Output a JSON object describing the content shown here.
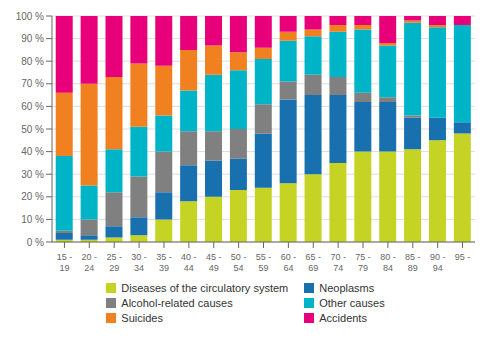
{
  "chart_data": {
    "type": "bar",
    "stacked": true,
    "grid": true,
    "legend": "bottom",
    "categories": [
      "15 -\n19",
      "20 -\n24",
      "25 -\n29",
      "30 -\n34",
      "35 -\n39",
      "40 -\n44",
      "45 -\n49",
      "50 -\n54",
      "55 -\n59",
      "60 -\n64",
      "65 -\n69",
      "70 -\n74",
      "75 -\n79",
      "80 -\n84",
      "85 -\n89",
      "90 -\n94",
      "95 -"
    ],
    "series": [
      {
        "name": "Diseases of the circulatory system",
        "color": "#c5d424",
        "values": [
          1,
          1,
          2,
          3,
          10,
          18,
          20,
          23,
          24,
          26,
          30,
          35,
          40,
          40,
          41,
          45,
          48
        ]
      },
      {
        "name": "Neoplasms",
        "color": "#1870af",
        "values": [
          3,
          2,
          5,
          8,
          12,
          16,
          16,
          14,
          24,
          37,
          35,
          30,
          22,
          22,
          14,
          10,
          5
        ]
      },
      {
        "name": "Alcohol-related causes",
        "color": "#808080",
        "values": [
          1,
          7,
          15,
          18,
          18,
          15,
          13,
          13,
          13,
          8,
          9,
          8,
          4,
          2,
          1,
          0,
          0
        ]
      },
      {
        "name": "Other causes",
        "color": "#00b4c8",
        "values": [
          33,
          15,
          19,
          22,
          16,
          18,
          25,
          26,
          20,
          18,
          17,
          20,
          28,
          23,
          41,
          40,
          43
        ]
      },
      {
        "name": "Suicides",
        "color": "#f08020",
        "values": [
          28,
          45,
          32,
          28,
          22,
          18,
          13,
          8,
          5,
          4,
          3,
          3,
          2,
          1,
          1,
          1,
          0
        ]
      },
      {
        "name": "Accidents",
        "color": "#e8007a",
        "values": [
          34,
          30,
          27,
          21,
          22,
          15,
          13,
          16,
          14,
          7,
          6,
          4,
          4,
          12,
          2,
          4,
          4
        ]
      }
    ],
    "ylim": [
      0,
      100
    ],
    "yticks": [
      {
        "value": 0,
        "label": "0 %"
      },
      {
        "value": 10,
        "label": "10 %"
      },
      {
        "value": 20,
        "label": "20 %"
      },
      {
        "value": 30,
        "label": "30 %"
      },
      {
        "value": 40,
        "label": "40 %"
      },
      {
        "value": 50,
        "label": "50 %"
      },
      {
        "value": 60,
        "label": "60 %"
      },
      {
        "value": 70,
        "label": "70 %"
      },
      {
        "value": 80,
        "label": "80 %"
      },
      {
        "value": 90,
        "label": "90 %"
      },
      {
        "value": 100,
        "label": "100 %"
      }
    ]
  }
}
